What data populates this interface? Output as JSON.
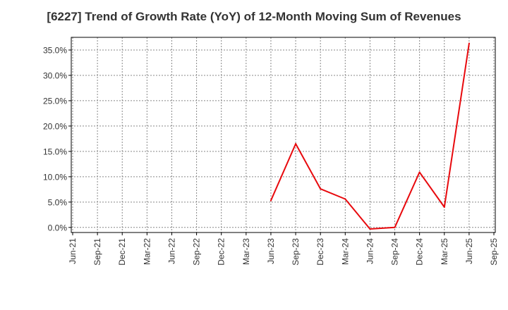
{
  "chart_data": {
    "type": "line",
    "title": "[6227]  Trend of Growth Rate (YoY) of 12-Month Moving Sum of Revenues",
    "xlabel": "",
    "ylabel": "",
    "x_ticks": [
      "Jun-21",
      "Sep-21",
      "Dec-21",
      "Mar-22",
      "Jun-22",
      "Sep-22",
      "Dec-22",
      "Mar-23",
      "Jun-23",
      "Sep-23",
      "Dec-23",
      "Mar-24",
      "Jun-24",
      "Sep-24",
      "Dec-24",
      "Mar-25",
      "Jun-25",
      "Sep-25"
    ],
    "y_ticks": [
      "0.0%",
      "5.0%",
      "10.0%",
      "15.0%",
      "20.0%",
      "25.0%",
      "30.0%",
      "35.0%"
    ],
    "ylim": [
      -1.0,
      37.5
    ],
    "grid": true,
    "series": [
      {
        "color": "#e8090d",
        "x": [
          "Jun-23",
          "Sep-23",
          "Dec-23",
          "Mar-24",
          "Jun-24",
          "Sep-24",
          "Dec-24",
          "Mar-25",
          "Jun-25"
        ],
        "values": [
          5.3,
          16.5,
          7.6,
          5.6,
          -0.3,
          0.0,
          10.9,
          4.0,
          36.3
        ]
      }
    ]
  }
}
